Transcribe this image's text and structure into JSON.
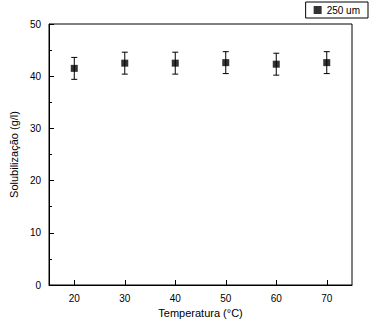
{
  "chart_data": {
    "type": "scatter",
    "x_label": "Temperatura (°C)",
    "y_label": "Solubilização (g/l)",
    "series": [
      {
        "name": "250 um",
        "color": "#000000",
        "marker": "square",
        "x": [
          20,
          30,
          40,
          50,
          60,
          70
        ],
        "values": [
          41.5,
          42.5,
          42.5,
          42.6,
          42.3,
          42.6
        ],
        "errors": [
          2.1,
          2.1,
          2.1,
          2.1,
          2.1,
          2.1
        ]
      }
    ],
    "xlim": [
      15,
      75
    ],
    "xticks": [
      20,
      30,
      40,
      50,
      60,
      70
    ],
    "ylim": [
      0,
      50
    ],
    "yticks": [
      0,
      10,
      20,
      30,
      40,
      50
    ],
    "legend": "upper right",
    "grid": false
  }
}
